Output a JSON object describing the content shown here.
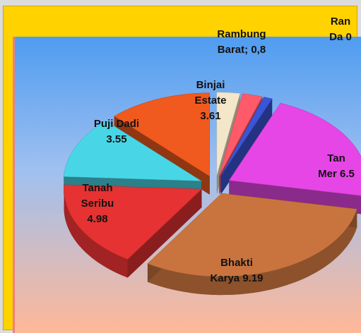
{
  "chart_data": {
    "type": "pie",
    "three_d": true,
    "exploded": true,
    "categories": [
      "Rambung Barat;",
      null,
      null,
      null,
      "Bhakti Karya",
      "Tanah Seribu",
      "Puji Dadi",
      "Binjai Estate"
    ],
    "values": [
      0.8,
      0.7,
      0.3,
      6.5,
      9.19,
      4.98,
      3.55,
      3.61
    ],
    "value_labels": [
      "0,8",
      null,
      null,
      null,
      "9.19",
      "4.98",
      "3.55",
      "3.61"
    ],
    "colors": [
      "#f3e6c9",
      "#ff5a6a",
      "#3a55d8",
      "#e646e6",
      "#c9743f",
      "#e63232",
      "#48d6e6",
      "#f05a1e"
    ],
    "annotations": [
      "Ran Da 0",
      "Tan Mer 6.5"
    ]
  }
}
